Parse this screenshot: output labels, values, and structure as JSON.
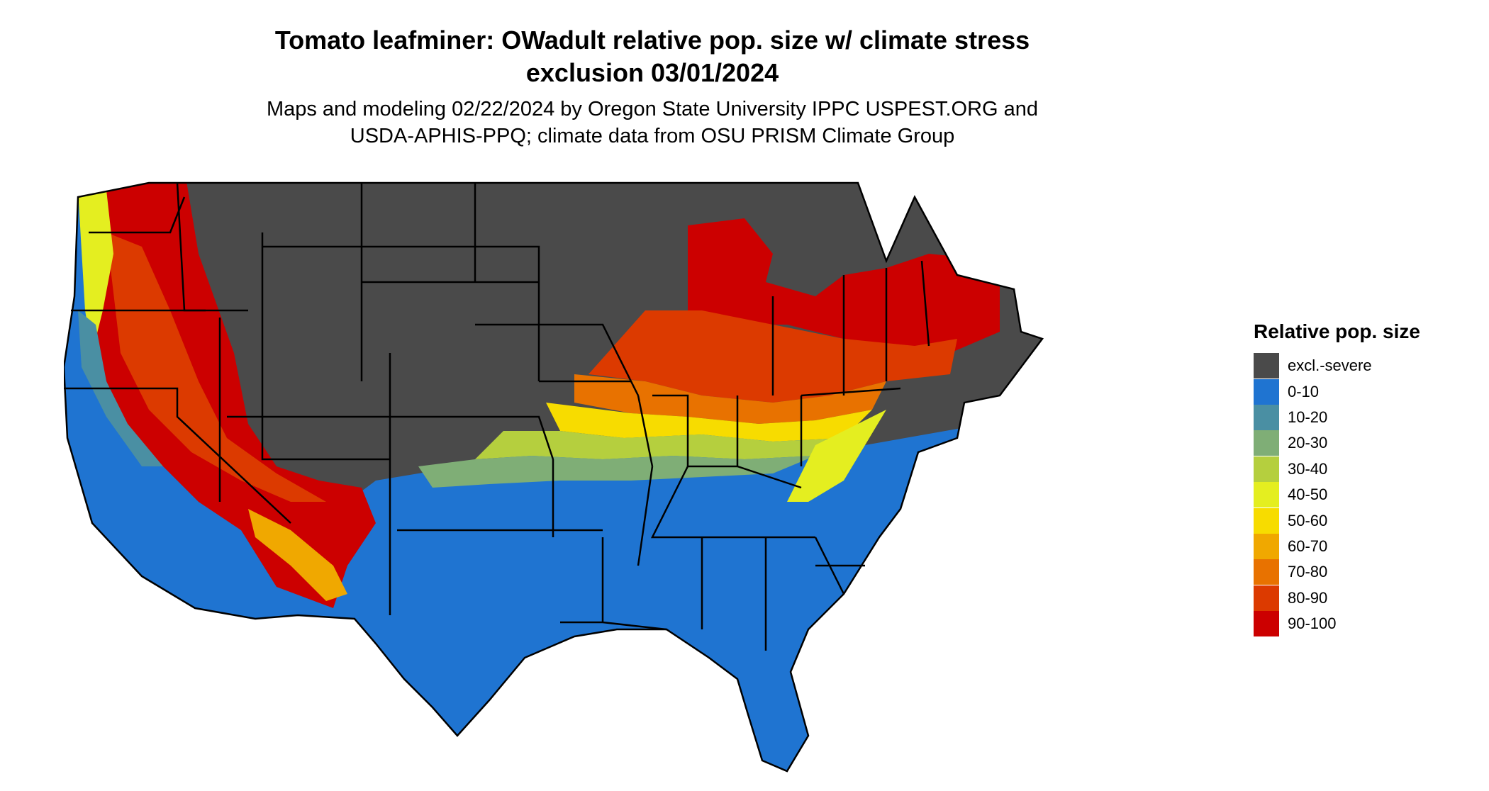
{
  "header": {
    "title_line1": "Tomato leafminer: OWadult relative pop. size w/ climate stress",
    "title_line2": "exclusion 03/01/2024",
    "subtitle_line1": "Maps and modeling 02/22/2024 by Oregon State University IPPC USPEST.ORG and",
    "subtitle_line2": "USDA-APHIS-PPQ; climate data from OSU PRISM Climate Group"
  },
  "legend": {
    "title": "Relative pop. size",
    "items": [
      {
        "label": "excl.-severe",
        "color": "#4a4a4a"
      },
      {
        "label": "0-10",
        "color": "#1f74d1"
      },
      {
        "label": "10-20",
        "color": "#4a8fa3"
      },
      {
        "label": "20-30",
        "color": "#7fae76"
      },
      {
        "label": "30-40",
        "color": "#b5cf3e"
      },
      {
        "label": "40-50",
        "color": "#e4ee20"
      },
      {
        "label": "50-60",
        "color": "#f7dc00"
      },
      {
        "label": "60-70",
        "color": "#f0a800"
      },
      {
        "label": "70-80",
        "color": "#e87200"
      },
      {
        "label": "80-90",
        "color": "#dc3a00"
      },
      {
        "label": "90-100",
        "color": "#cc0000"
      }
    ]
  },
  "map": {
    "region": "contiguous-united-states",
    "border_color": "#000000"
  }
}
